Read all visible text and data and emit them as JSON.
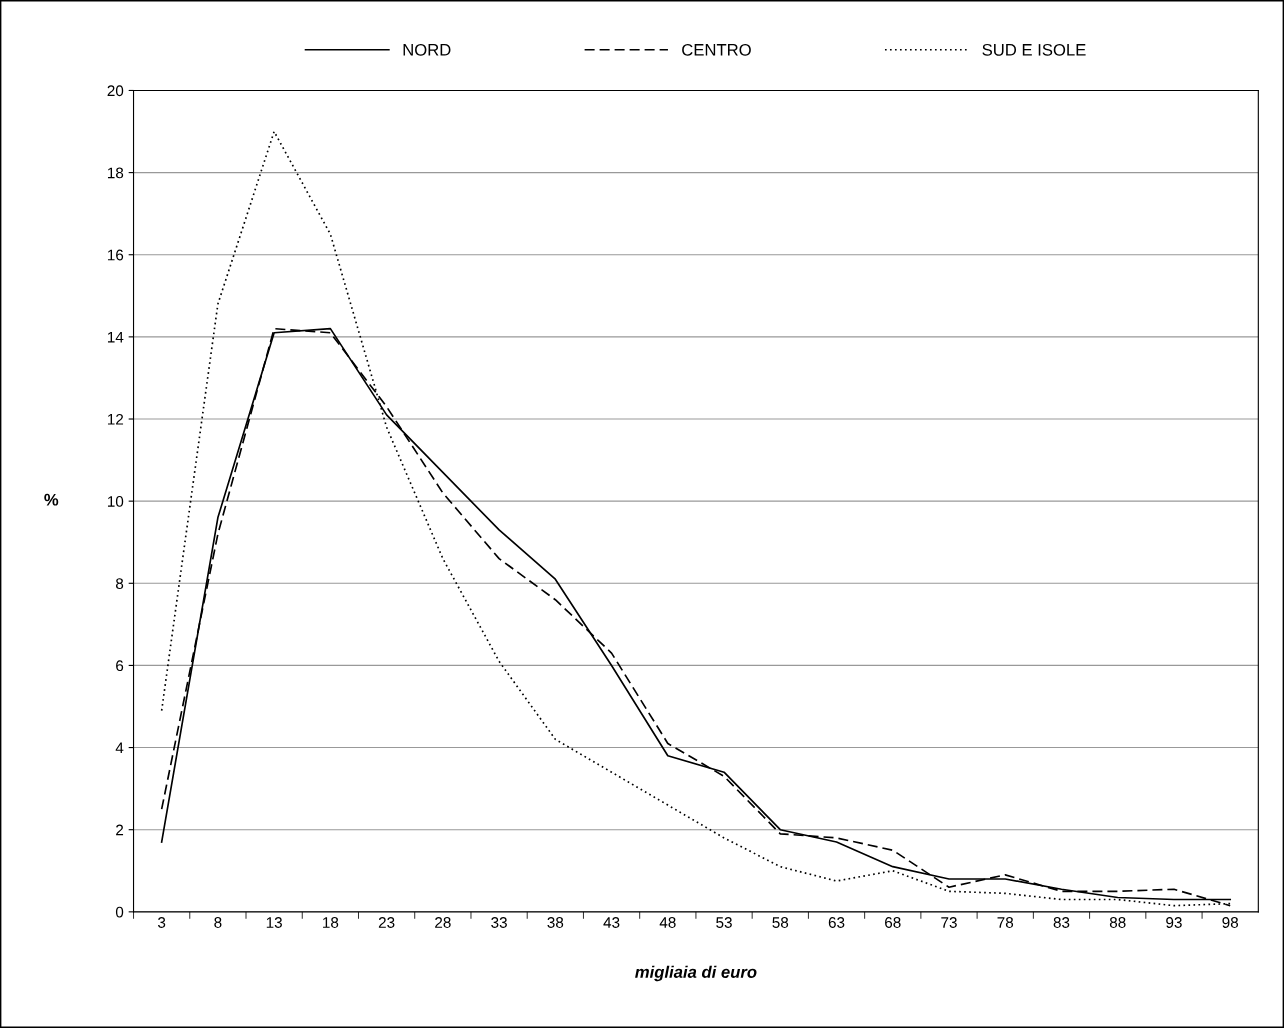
{
  "chart_data": {
    "type": "line",
    "xlabel": "migliaia di euro",
    "ylabel": "%",
    "categories": [
      "3",
      "8",
      "13",
      "18",
      "23",
      "28",
      "33",
      "38",
      "43",
      "48",
      "53",
      "58",
      "63",
      "68",
      "73",
      "78",
      "83",
      "88",
      "93",
      "98"
    ],
    "ylim": [
      0,
      20
    ],
    "yticks": [
      0,
      2,
      4,
      6,
      8,
      10,
      12,
      14,
      16,
      18,
      20
    ],
    "grid": "y",
    "legend": "top",
    "marker": "none",
    "series": [
      {
        "name": "NORD",
        "color": "#000000",
        "line_style": "solid",
        "values": [
          1.7,
          9.6,
          14.1,
          14.2,
          12.1,
          10.7,
          9.3,
          8.1,
          6.0,
          3.8,
          3.4,
          2.0,
          1.7,
          1.1,
          0.8,
          0.8,
          0.55,
          0.35,
          0.3,
          0.3
        ]
      },
      {
        "name": "CENTRO",
        "color": "#000000",
        "line_style": "dashed",
        "values": [
          2.5,
          9.2,
          14.2,
          14.1,
          12.3,
          10.2,
          8.6,
          7.6,
          6.3,
          4.1,
          3.3,
          1.9,
          1.8,
          1.5,
          0.6,
          0.9,
          0.5,
          0.5,
          0.55,
          0.15
        ]
      },
      {
        "name": "SUD E ISOLE",
        "color": "#000000",
        "line_style": "dotted",
        "values": [
          4.9,
          14.8,
          19.0,
          16.5,
          11.8,
          8.6,
          6.1,
          4.2,
          3.4,
          2.6,
          1.8,
          1.1,
          0.75,
          1.0,
          0.5,
          0.45,
          0.3,
          0.3,
          0.15,
          0.2
        ]
      }
    ]
  }
}
